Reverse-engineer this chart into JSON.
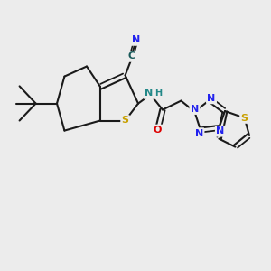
{
  "bg": "#ececec",
  "bc": "#1a1a1a",
  "bw": 1.5,
  "N_color": "#2222ee",
  "S_color": "#c8a000",
  "O_color": "#dd0000",
  "H_color": "#228888",
  "C_color": "#1a5a5a",
  "fs": 8.0,
  "xlim": [
    0,
    10
  ],
  "ylim": [
    0,
    10
  ]
}
